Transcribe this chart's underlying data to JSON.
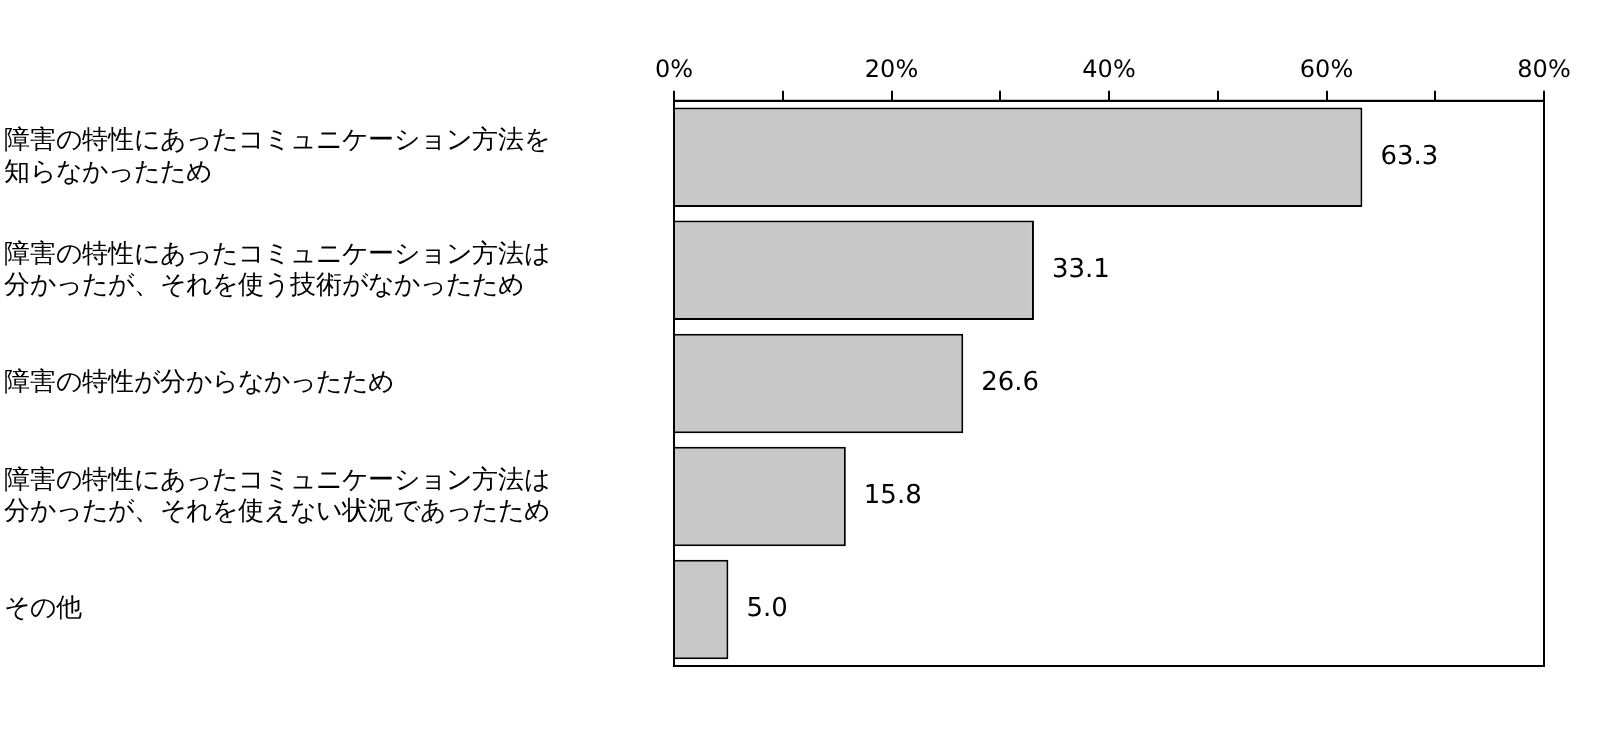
{
  "chart_data": {
    "type": "bar",
    "orientation": "horizontal",
    "categories": [
      "障害の特性にあったコミュニケーション方法を知らなかったため",
      "障害の特性にあったコミュニケーション方法は分かったが、それを使う技術がなかったため",
      "障害の特性が分からなかったため",
      "障害の特性にあったコミュニケーション方法は分かったが、それを使えない状況であったため",
      "その他"
    ],
    "values": [
      63.3,
      33.1,
      26.6,
      15.8,
      5.0
    ],
    "value_labels": [
      "63.3",
      "33.1",
      "26.6",
      "15.8",
      "5.0"
    ],
    "color": "#c8c8c8",
    "xlim": [
      0,
      80
    ],
    "xticks": [
      {
        "value": 0,
        "label": "0%"
      },
      {
        "value": 10,
        "label": null
      },
      {
        "value": 20,
        "label": "20%"
      },
      {
        "value": 30,
        "label": null
      },
      {
        "value": 40,
        "label": "40%"
      },
      {
        "value": 50,
        "label": null
      },
      {
        "value": 60,
        "label": "60%"
      },
      {
        "value": 70,
        "label": null
      },
      {
        "value": 80,
        "label": "80%"
      }
    ],
    "grid": false,
    "legend": false
  }
}
